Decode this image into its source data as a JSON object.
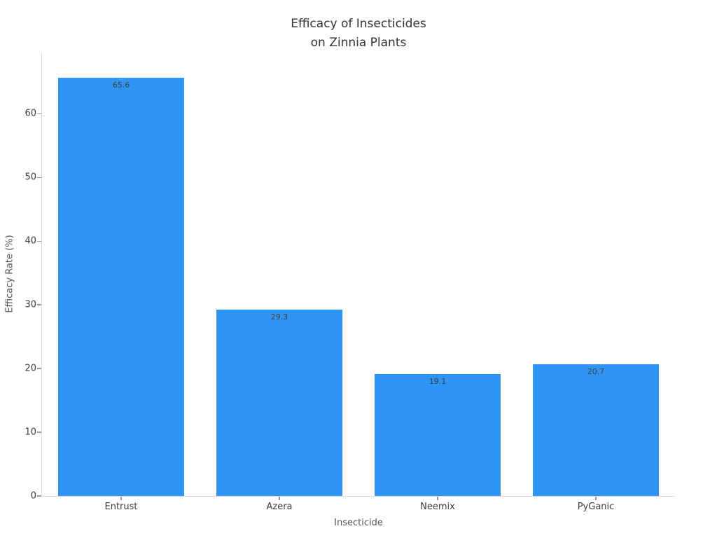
{
  "chart_data": {
    "type": "bar",
    "title": "Efficacy of Insecticides\non Zinnia Plants",
    "categories": [
      "Entrust",
      "Azera",
      "Neemix",
      "PyGanic"
    ],
    "values": [
      65.6,
      29.3,
      19.1,
      20.7
    ],
    "bar_labels": [
      "65.6",
      "29.3",
      "19.1",
      "20.7"
    ],
    "xlabel": "Insecticide",
    "ylabel": "Efficacy Rate (%)",
    "yticks": [
      0,
      10,
      20,
      30,
      40,
      50,
      60
    ],
    "ylim": [
      0,
      69.6
    ],
    "grid": false,
    "legend": "none",
    "colors": {
      "bar": "#2F95F5",
      "spine": "#d9d9d9",
      "tick_mark": "#999999",
      "title_text": "#333333",
      "tick_label_text": "#3d3d3d",
      "axis_label_text": "#555555",
      "value_label_text": "#3f3f3f",
      "background": "#ffffff"
    }
  }
}
